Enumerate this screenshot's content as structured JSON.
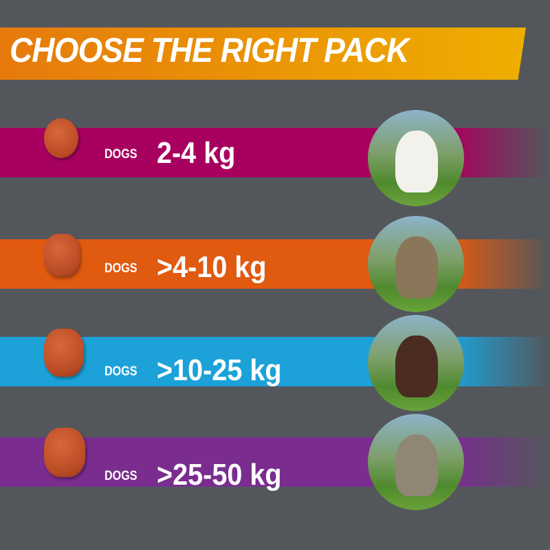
{
  "title": "CHOOSE THE RIGHT PACK",
  "colors": {
    "background": "#53575c",
    "banner": "#eeae00"
  },
  "rows": [
    {
      "prefix": "DOGS",
      "weight": "2-4 kg",
      "color": "#a8005f",
      "dog_color": "#f3f1ec"
    },
    {
      "prefix": "DOGS",
      "weight": ">4-10 kg",
      "color": "#e05a10",
      "dog_color": "#8a7658"
    },
    {
      "prefix": "DOGS",
      "weight": ">10-25 kg",
      "color": "#1ca2d9",
      "dog_color": "#4a2c22"
    },
    {
      "prefix": "DOGS",
      "weight": ">25-50 kg",
      "color": "#7a2d8e",
      "dog_color": "#8f8676"
    }
  ]
}
